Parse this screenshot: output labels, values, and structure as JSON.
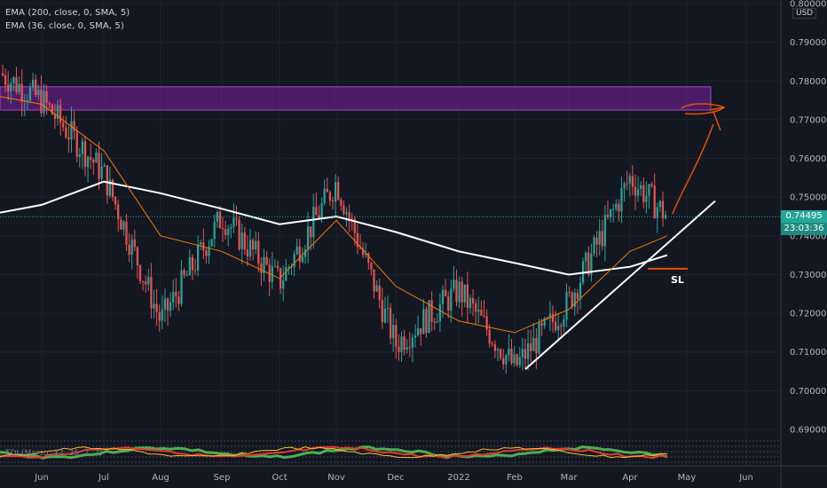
{
  "legend": {
    "ema200": "EMA (200, close, 0, SMA, 5)",
    "ema36": "EMA (36, close, 0, SMA, 5)"
  },
  "currency": "USD",
  "current_price": "0.74495",
  "countdown": "23:03:36",
  "stop_label": "SL",
  "tdi_label": "TDI (Marsu, 13, 25, 7, 7)",
  "colors": {
    "background": "#131722",
    "bull": "#26a69a",
    "bear": "#ef5350",
    "ema200": "#ffffff",
    "ema36": "#f57c00",
    "zone": "#7b1fa2",
    "annotation": "#e65100"
  },
  "chart_data": {
    "type": "candlestick",
    "y_axis": {
      "ticks": [
        "0.80000",
        "0.79000",
        "0.78000",
        "0.77000",
        "0.76000",
        "0.75000",
        "0.74000",
        "0.73000",
        "0.72000",
        "0.71000",
        "0.70000",
        "0.69000"
      ],
      "range": [
        0.687,
        0.801
      ]
    },
    "x_axis": {
      "ticks": [
        "Jun",
        "Jul",
        "Aug",
        "Sep",
        "Oct",
        "Nov",
        "Dec",
        "2022",
        "Feb",
        "Mar",
        "Apr",
        "May",
        "Jun"
      ]
    },
    "price_path": [
      [
        "Jun",
        0.775
      ],
      [
        "Jul",
        0.756
      ],
      [
        "Aug",
        0.718
      ],
      [
        "Sep",
        0.745
      ],
      [
        "Oct",
        0.728
      ],
      [
        "Nov",
        0.754
      ],
      [
        "Dec",
        0.712
      ],
      [
        "2022",
        0.726
      ],
      [
        "Feb",
        0.706
      ],
      [
        "Mar",
        0.723
      ],
      [
        "Apr",
        0.755
      ],
      [
        "Apr-end",
        0.745
      ]
    ],
    "ema200_path": [
      [
        "Jun",
        0.748
      ],
      [
        "Jul",
        0.754
      ],
      [
        "Aug",
        0.751
      ],
      [
        "Sep",
        0.747
      ],
      [
        "Oct",
        0.743
      ],
      [
        "Nov",
        0.745
      ],
      [
        "Dec",
        0.741
      ],
      [
        "2022",
        0.736
      ],
      [
        "Feb",
        0.733
      ],
      [
        "Mar",
        0.73
      ],
      [
        "Apr",
        0.732
      ],
      [
        "Apr-end",
        0.735
      ]
    ],
    "ema36_path": [
      [
        "Jun",
        0.774
      ],
      [
        "Jul",
        0.762
      ],
      [
        "Aug",
        0.74
      ],
      [
        "Sep",
        0.736
      ],
      [
        "Oct",
        0.729
      ],
      [
        "Nov",
        0.744
      ],
      [
        "Dec",
        0.727
      ],
      [
        "2022",
        0.718
      ],
      [
        "Feb",
        0.715
      ],
      [
        "Mar",
        0.721
      ],
      [
        "Apr",
        0.736
      ],
      [
        "Apr-end",
        0.74
      ]
    ],
    "resistance_zone": [
      0.7725,
      0.7785
    ],
    "trendline": {
      "from": [
        "Feb",
        0.706
      ],
      "to": [
        "May",
        0.744
      ]
    },
    "stop_loss": 0.7315,
    "target": 0.7735
  }
}
